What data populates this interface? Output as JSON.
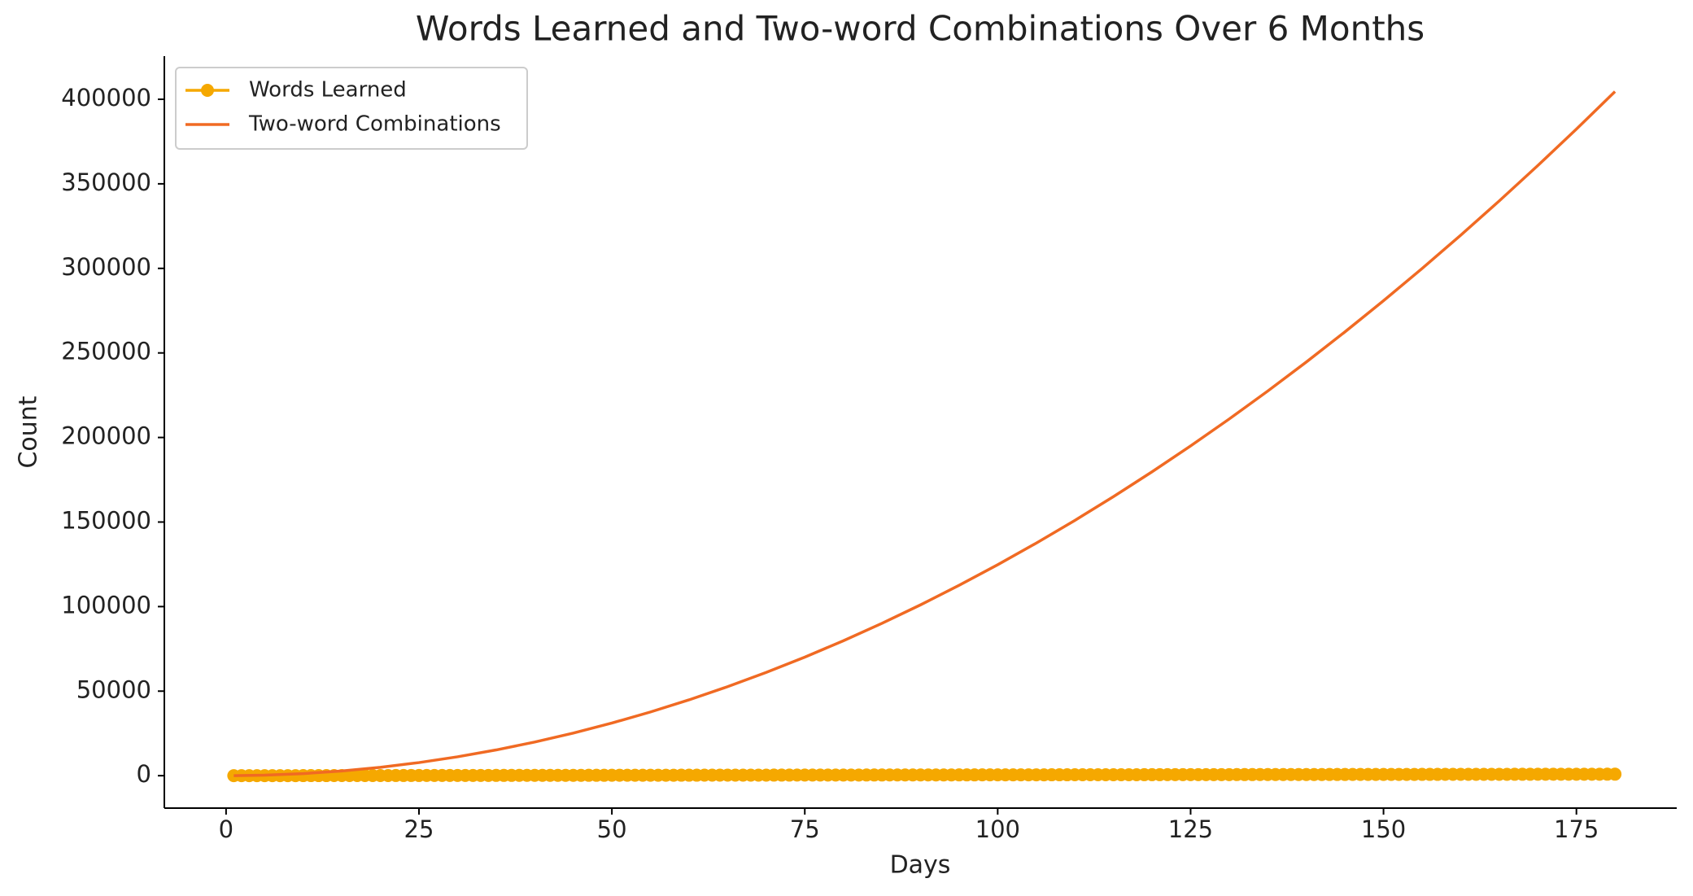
{
  "chart_data": {
    "type": "line",
    "title": "Words Learned and Two-word Combinations Over 6 Months",
    "x_label": "Days",
    "y_label": "Count",
    "xlim": [
      -8,
      188
    ],
    "xticks": [
      0,
      25,
      50,
      75,
      100,
      125,
      150,
      175
    ],
    "ylim": [
      -19170,
      425500
    ],
    "yticks": [
      0,
      50000,
      100000,
      150000,
      200000,
      250000,
      300000,
      350000,
      400000
    ],
    "legend": "upper left",
    "series": [
      {
        "name": "Words Learned",
        "color": "#f5a800",
        "marker": true,
        "x": [
          1,
          2,
          3,
          4,
          5,
          6,
          7,
          8,
          9,
          10,
          11,
          12,
          13,
          14,
          15,
          16,
          17,
          18,
          19,
          20,
          21,
          22,
          23,
          24,
          25,
          26,
          27,
          28,
          29,
          30,
          31,
          32,
          33,
          34,
          35,
          36,
          37,
          38,
          39,
          40,
          41,
          42,
          43,
          44,
          45,
          46,
          47,
          48,
          49,
          50,
          51,
          52,
          53,
          54,
          55,
          56,
          57,
          58,
          59,
          60,
          61,
          62,
          63,
          64,
          65,
          66,
          67,
          68,
          69,
          70,
          71,
          72,
          73,
          74,
          75,
          76,
          77,
          78,
          79,
          80,
          81,
          82,
          83,
          84,
          85,
          86,
          87,
          88,
          89,
          90,
          91,
          92,
          93,
          94,
          95,
          96,
          97,
          98,
          99,
          100,
          101,
          102,
          103,
          104,
          105,
          106,
          107,
          108,
          109,
          110,
          111,
          112,
          113,
          114,
          115,
          116,
          117,
          118,
          119,
          120,
          121,
          122,
          123,
          124,
          125,
          126,
          127,
          128,
          129,
          130,
          131,
          132,
          133,
          134,
          135,
          136,
          137,
          138,
          139,
          140,
          141,
          142,
          143,
          144,
          145,
          146,
          147,
          148,
          149,
          150,
          151,
          152,
          153,
          154,
          155,
          156,
          157,
          158,
          159,
          160,
          161,
          162,
          163,
          164,
          165,
          166,
          167,
          168,
          169,
          170,
          171,
          172,
          173,
          174,
          175,
          176,
          177,
          178,
          179,
          180
        ],
        "values": [
          5,
          10,
          15,
          20,
          25,
          30,
          35,
          40,
          45,
          50,
          55,
          60,
          65,
          70,
          75,
          80,
          85,
          90,
          95,
          100,
          105,
          110,
          115,
          120,
          125,
          130,
          135,
          140,
          145,
          150,
          155,
          160,
          165,
          170,
          175,
          180,
          185,
          190,
          195,
          200,
          205,
          210,
          215,
          220,
          225,
          230,
          235,
          240,
          245,
          250,
          255,
          260,
          265,
          270,
          275,
          280,
          285,
          290,
          295,
          300,
          305,
          310,
          315,
          320,
          325,
          330,
          335,
          340,
          345,
          350,
          355,
          360,
          365,
          370,
          375,
          380,
          385,
          390,
          395,
          400,
          405,
          410,
          415,
          420,
          425,
          430,
          435,
          440,
          445,
          450,
          455,
          460,
          465,
          470,
          475,
          480,
          485,
          490,
          495,
          500,
          505,
          510,
          515,
          520,
          525,
          530,
          535,
          540,
          545,
          550,
          555,
          560,
          565,
          570,
          575,
          580,
          585,
          590,
          595,
          600,
          605,
          610,
          615,
          620,
          625,
          630,
          635,
          640,
          645,
          650,
          655,
          660,
          665,
          670,
          675,
          680,
          685,
          690,
          695,
          700,
          705,
          710,
          715,
          720,
          725,
          730,
          735,
          740,
          745,
          750,
          755,
          760,
          765,
          770,
          775,
          780,
          785,
          790,
          795,
          800,
          805,
          810,
          815,
          820,
          825,
          830,
          835,
          840,
          845,
          850,
          855,
          860,
          865,
          870,
          875,
          880,
          885,
          890,
          895,
          900
        ]
      },
      {
        "name": "Two-word Combinations",
        "color": "#f06a23",
        "marker": false,
        "x": [
          1,
          5,
          10,
          15,
          20,
          25,
          30,
          35,
          40,
          45,
          50,
          55,
          60,
          65,
          70,
          75,
          80,
          85,
          90,
          95,
          100,
          105,
          110,
          115,
          120,
          125,
          130,
          135,
          140,
          145,
          150,
          155,
          160,
          165,
          170,
          175,
          180
        ],
        "values": [
          10,
          300,
          1225,
          2775,
          4950,
          7750,
          11175,
          15225,
          19900,
          25200,
          31125,
          37675,
          44850,
          52650,
          61075,
          70125,
          79800,
          90100,
          101025,
          112575,
          124750,
          137550,
          150975,
          165025,
          179700,
          195000,
          210925,
          227475,
          244650,
          262450,
          280875,
          299925,
          319600,
          339900,
          360825,
          382375,
          404550
        ]
      }
    ]
  }
}
